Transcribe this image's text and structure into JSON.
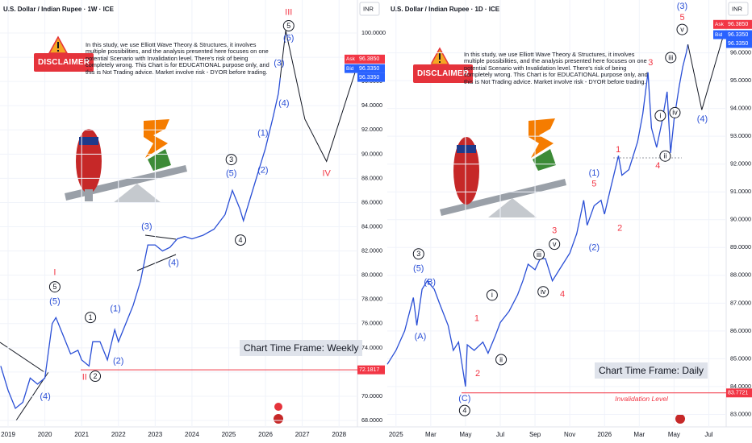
{
  "chart_data": [
    {
      "type": "line",
      "title": "U.S. Dollar / Indian Rupee · 1W · ICE",
      "currency": "INR",
      "grid": true,
      "xlim": [
        2018.78,
        2028.5
      ],
      "xticks": [
        2019,
        2020,
        2021,
        2022,
        2023,
        2024,
        2025,
        2026,
        2027,
        2028
      ],
      "ylim": [
        67.47,
        102.73
      ],
      "yticks": [
        {
          "value": 68,
          "label": "68.0000"
        },
        {
          "value": 70,
          "label": "70.0000"
        },
        {
          "value": 72,
          "label": "72.0000"
        },
        {
          "value": 74,
          "label": "74.0000"
        },
        {
          "value": 76,
          "label": "76.0000"
        },
        {
          "value": 78,
          "label": "78.0000"
        },
        {
          "value": 80,
          "label": "80.0000"
        },
        {
          "value": 82,
          "label": "82.0000"
        },
        {
          "value": 84,
          "label": "84.0000"
        },
        {
          "value": 86,
          "label": "86.0000"
        },
        {
          "value": 88,
          "label": "88.0000"
        },
        {
          "value": 90,
          "label": "90.0000"
        },
        {
          "value": 92,
          "label": "92.0000"
        },
        {
          "value": 94,
          "label": "94.0000"
        },
        {
          "value": 96,
          "label": "96.0000"
        },
        {
          "value": 98,
          "label": "98.0000"
        },
        {
          "value": 100,
          "label": "100.0000"
        }
      ],
      "series": [
        {
          "color": "#2a4fd6",
          "x": [
            2018.8,
            2019.0,
            2019.2,
            2019.4,
            2019.6,
            2019.8,
            2020.0,
            2020.2,
            2020.3,
            2020.5,
            2020.7,
            2020.9,
            2021.0,
            2021.2,
            2021.3,
            2021.5,
            2021.7,
            2021.9,
            2022.0,
            2022.2,
            2022.4,
            2022.6,
            2022.8,
            2023.0,
            2023.2,
            2023.4,
            2023.6,
            2023.8,
            2024.0,
            2024.3,
            2024.6,
            2024.9,
            2025.1,
            2025.3,
            2025.4,
            2025.6,
            2025.8,
            2026.0,
            2026.2,
            2026.35,
            2026.4
          ],
          "values": [
            72.5,
            70.5,
            69,
            69.5,
            71.5,
            71,
            71.5,
            76,
            76.5,
            75,
            73.5,
            73.8,
            73,
            72.5,
            74.5,
            74.5,
            73,
            75.5,
            74.5,
            76,
            77.5,
            79.5,
            82.5,
            82.5,
            82,
            82.3,
            83,
            83.2,
            83,
            83.3,
            83.8,
            85,
            87,
            85.5,
            84.5,
            86.5,
            88.5,
            90.5,
            93,
            95,
            96.3
          ]
        },
        {
          "color": "#131722",
          "x": [
            2026.4,
            2026.55,
            2027.07,
            2027.66,
            2028.43
          ],
          "values": [
            96.3,
            100.2,
            92.9,
            89.4,
            96.7
          ]
        }
      ],
      "annotations": [
        {
          "text": "I",
          "x": 2020.27,
          "y": 80.24,
          "color": "#f23645",
          "circled": false
        },
        {
          "text": "5",
          "x": 2020.27,
          "y": 79.04,
          "color": "#131722",
          "circled": true
        },
        {
          "text": "(5)",
          "x": 2020.27,
          "y": 77.84,
          "color": "#2a4fd6",
          "circled": false
        },
        {
          "text": "(4)",
          "x": 2020.01,
          "y": 70.0,
          "color": "#2a4fd6",
          "circled": false
        },
        {
          "text": "1",
          "x": 2021.24,
          "y": 76.51,
          "color": "#131722",
          "circled": true
        },
        {
          "text": "(1)",
          "x": 2021.92,
          "y": 77.25,
          "color": "#2a4fd6",
          "circled": false
        },
        {
          "text": "(2)",
          "x": 2022.0,
          "y": 72.92,
          "color": "#2a4fd6",
          "circled": false
        },
        {
          "text": "II",
          "x": 2021.08,
          "y": 71.59,
          "color": "#f23645",
          "circled": false
        },
        {
          "text": "2",
          "x": 2021.37,
          "y": 71.66,
          "color": "#131722",
          "circled": true
        },
        {
          "text": "(3)",
          "x": 2022.77,
          "y": 84.03,
          "color": "#2a4fd6",
          "circled": false
        },
        {
          "text": "(4)",
          "x": 2023.5,
          "y": 81.04,
          "color": "#2a4fd6",
          "circled": false
        },
        {
          "text": "3",
          "x": 2025.07,
          "y": 89.55,
          "color": "#131722",
          "circled": true
        },
        {
          "text": "(5)",
          "x": 2025.07,
          "y": 88.42,
          "color": "#2a4fd6",
          "circled": false
        },
        {
          "text": "4",
          "x": 2025.32,
          "y": 82.9,
          "color": "#131722",
          "circled": true
        },
        {
          "text": "(1)",
          "x": 2025.93,
          "y": 91.75,
          "color": "#2a4fd6",
          "circled": false
        },
        {
          "text": "(2)",
          "x": 2025.93,
          "y": 88.69,
          "color": "#2a4fd6",
          "circled": false
        },
        {
          "text": "(3)",
          "x": 2026.37,
          "y": 97.54,
          "color": "#2a4fd6",
          "circled": false
        },
        {
          "text": "(4)",
          "x": 2026.5,
          "y": 94.21,
          "color": "#2a4fd6",
          "circled": false
        },
        {
          "text": "III",
          "x": 2026.63,
          "y": 101.73,
          "color": "#f23645",
          "circled": false
        },
        {
          "text": "5",
          "x": 2026.63,
          "y": 100.6,
          "color": "#131722",
          "circled": true
        },
        {
          "text": "(5)",
          "x": 2026.63,
          "y": 99.6,
          "color": "#2a4fd6",
          "circled": false
        },
        {
          "text": "IV",
          "x": 2027.66,
          "y": 88.42,
          "color": "#f23645",
          "circled": false
        }
      ],
      "price_tags": [
        {
          "name": "Ask",
          "value": 96.385,
          "label": "96.3850",
          "color": "#f23645"
        },
        {
          "name": "Bid",
          "value": 96.335,
          "label": "96.3350",
          "color": "#2962ff"
        },
        {
          "value": 96.335,
          "label": "96.3350",
          "color": "#2962ff"
        }
      ],
      "invalidation": {
        "value": 72.1817,
        "color": "#f23645"
      },
      "timeframe_note": "Chart Time Frame: Weekly",
      "disclaimer_badge": "DISCLAIMER",
      "disclaimer": "In this study, we use Elliott Wave Theory & Structures, it involves multiple possibilities, and the analysis presented here focuses on one potential Scenario with Invalidation level. There's risk of being completely wrong. This Chart is for EDUCATIONAL purpose only, and this is Not Trading advice. Market involve risk - DYOR before trading."
    },
    {
      "type": "line",
      "title": "U.S. Dollar / Indian Rupee · 1D · ICE",
      "currency": "INR",
      "grid": true,
      "xlim": [
        -0.5,
        19.0
      ],
      "xticks": [
        {
          "value": 0,
          "label": "2025"
        },
        {
          "value": 2,
          "label": "Mar"
        },
        {
          "value": 4,
          "label": "May"
        },
        {
          "value": 6,
          "label": "Jul"
        },
        {
          "value": 8,
          "label": "Sep"
        },
        {
          "value": 10,
          "label": "Nov"
        },
        {
          "value": 12,
          "label": "2026"
        },
        {
          "value": 14,
          "label": "Mar"
        },
        {
          "value": 16,
          "label": "May"
        },
        {
          "value": 18,
          "label": "Jul"
        }
      ],
      "ylim": [
        82.55,
        97.9
      ],
      "yticks": [
        {
          "value": 83,
          "label": "83.0000"
        },
        {
          "value": 84,
          "label": "84.0000"
        },
        {
          "value": 85,
          "label": "85.0000"
        },
        {
          "value": 86,
          "label": "86.0000"
        },
        {
          "value": 87,
          "label": "87.0000"
        },
        {
          "value": 88,
          "label": "88.0000"
        },
        {
          "value": 89,
          "label": "89.0000"
        },
        {
          "value": 90,
          "label": "90.0000"
        },
        {
          "value": 91,
          "label": "91.0000"
        },
        {
          "value": 92,
          "label": "92.0000"
        },
        {
          "value": 93,
          "label": "93.0000"
        },
        {
          "value": 94,
          "label": "94.0000"
        },
        {
          "value": 95,
          "label": "95.0000"
        },
        {
          "value": 96,
          "label": "96.0000"
        }
      ],
      "series": [
        {
          "color": "#2a4fd6",
          "x": [
            -0.5,
            0,
            0.5,
            1,
            1.2,
            1.5,
            1.8,
            2.2,
            2.5,
            3,
            3.3,
            3.6,
            4,
            4.1,
            4.5,
            5,
            5.3,
            5.7,
            6,
            6.5,
            7,
            7.3,
            7.6,
            8,
            8.3,
            8.6,
            9,
            9.4,
            10,
            10.4,
            10.8,
            11,
            11.4,
            11.8,
            12,
            12.3,
            12.8,
            13,
            13.4,
            13.9,
            14.2,
            14.5,
            14.7,
            15,
            15.3,
            15.6,
            15.8,
            16,
            16.3,
            16.5,
            16.7,
            16.8
          ],
          "values": [
            84.8,
            85.3,
            86,
            87.2,
            86.2,
            87.5,
            87.8,
            87.5,
            87,
            86.2,
            85.3,
            85.6,
            84.0,
            85.5,
            85.3,
            85.6,
            85.2,
            85.8,
            86.3,
            86.7,
            87.3,
            87.8,
            88.4,
            88.2,
            88.6,
            88.6,
            87.8,
            88.2,
            88.8,
            89.5,
            90.7,
            89.8,
            90.5,
            90.7,
            90.2,
            91,
            92.3,
            91.6,
            91.8,
            92.8,
            93.8,
            95.3,
            93.3,
            92.6,
            93.5,
            94.6,
            92.4,
            93.6,
            94.8,
            95.5,
            96.0,
            96.3
          ]
        },
        {
          "color": "#131722",
          "x": [
            16.8,
            17.6,
            18.9
          ],
          "values": [
            96.3,
            93.95,
            96.75
          ]
        }
      ],
      "annotations": [
        {
          "text": "(3)",
          "x": 16.47,
          "y": 97.68,
          "color": "#2a4fd6",
          "circled": false
        },
        {
          "text": "5",
          "x": 16.47,
          "y": 97.28,
          "color": "#f23645",
          "circled": false
        },
        {
          "text": "v",
          "x": 16.47,
          "y": 96.84,
          "color": "#131722",
          "circled": true
        },
        {
          "text": "(4)",
          "x": 17.63,
          "y": 93.62,
          "color": "#2a4fd6",
          "circled": false
        },
        {
          "text": "3",
          "x": 1.3,
          "y": 88.77,
          "color": "#131722",
          "circled": true
        },
        {
          "text": "(5)",
          "x": 1.3,
          "y": 88.25,
          "color": "#2a4fd6",
          "circled": false
        },
        {
          "text": "(B)",
          "x": 1.95,
          "y": 87.76,
          "color": "#2a4fd6",
          "circled": false
        },
        {
          "text": "(A)",
          "x": 1.4,
          "y": 85.81,
          "color": "#2a4fd6",
          "circled": false
        },
        {
          "text": "(C)",
          "x": 3.95,
          "y": 83.58,
          "color": "#2a4fd6",
          "circled": false
        },
        {
          "text": "4",
          "x": 3.95,
          "y": 83.14,
          "color": "#131722",
          "circled": true
        },
        {
          "text": "1",
          "x": 4.65,
          "y": 86.45,
          "color": "#f23645",
          "circled": false
        },
        {
          "text": "2",
          "x": 4.7,
          "y": 84.48,
          "color": "#f23645",
          "circled": false
        },
        {
          "text": "i",
          "x": 5.53,
          "y": 87.29,
          "color": "#131722",
          "circled": true
        },
        {
          "text": "ii",
          "x": 6.05,
          "y": 84.97,
          "color": "#131722",
          "circled": true
        },
        {
          "text": "3",
          "x": 9.12,
          "y": 89.62,
          "color": "#f23645",
          "circled": false
        },
        {
          "text": "v",
          "x": 9.12,
          "y": 89.12,
          "color": "#131722",
          "circled": true
        },
        {
          "text": "iii",
          "x": 8.23,
          "y": 88.75,
          "color": "#131722",
          "circled": true
        },
        {
          "text": "iv",
          "x": 8.47,
          "y": 87.41,
          "color": "#131722",
          "circled": true
        },
        {
          "text": "4",
          "x": 9.58,
          "y": 87.32,
          "color": "#f23645",
          "circled": false
        },
        {
          "text": "(1)",
          "x": 11.4,
          "y": 91.68,
          "color": "#2a4fd6",
          "circled": false
        },
        {
          "text": "5",
          "x": 11.4,
          "y": 91.3,
          "color": "#f23645",
          "circled": false
        },
        {
          "text": "(2)",
          "x": 11.4,
          "y": 89.01,
          "color": "#2a4fd6",
          "circled": false
        },
        {
          "text": "1",
          "x": 12.79,
          "y": 92.52,
          "color": "#f23645",
          "circled": false
        },
        {
          "text": "2",
          "x": 12.88,
          "y": 89.7,
          "color": "#f23645",
          "circled": false
        },
        {
          "text": "iii",
          "x": 15.81,
          "y": 95.83,
          "color": "#131722",
          "circled": true
        },
        {
          "text": "i",
          "x": 15.21,
          "y": 93.74,
          "color": "#131722",
          "circled": true
        },
        {
          "text": "iv",
          "x": 16.05,
          "y": 93.85,
          "color": "#131722",
          "circled": true
        },
        {
          "text": "ii",
          "x": 15.49,
          "y": 92.29,
          "color": "#131722",
          "circled": true
        },
        {
          "text": "3",
          "x": 14.65,
          "y": 95.65,
          "color": "#f23645",
          "circled": false
        },
        {
          "text": "4",
          "x": 15.07,
          "y": 91.94,
          "color": "#f23645",
          "circled": false
        }
      ],
      "price_tags": [
        {
          "name": "Ask",
          "value": 96.385,
          "label": "96.3850",
          "color": "#f23645"
        },
        {
          "name": "Bid",
          "value": 96.335,
          "label": "96.3350",
          "color": "#2962ff"
        },
        {
          "value": 96.335,
          "label": "96.3350",
          "color": "#2962ff"
        }
      ],
      "invalidation": {
        "value": 83.7721,
        "label": "Invalidation Level",
        "color": "#f23645"
      },
      "timeframe_note": "Chart Time Frame: Daily",
      "disclaimer_badge": "DISCLAIMER",
      "disclaimer": "In this study, we use Elliott Wave Theory & Structures, it involves multiple possibilities, and the analysis presented here focuses on one potential Scenario with Invalidation level. There's risk of being completely wrong. This Chart is for EDUCATIONAL purpose only, and this is Not Trading advice. Market involve risk - DYOR before trading."
    }
  ]
}
